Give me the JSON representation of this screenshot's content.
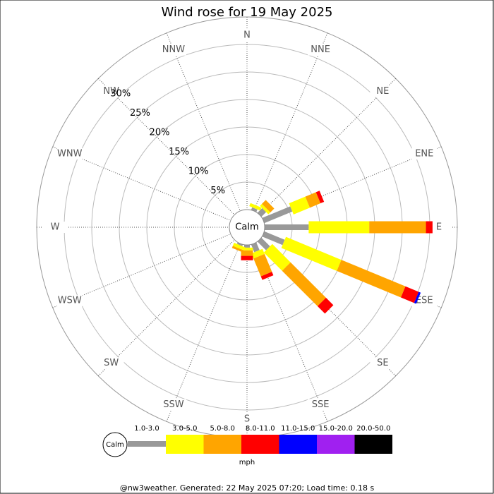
{
  "chart_data": {
    "type": "windrose",
    "title": "Wind rose for 19 May 2025",
    "directions": [
      "N",
      "NNE",
      "NE",
      "ENE",
      "E",
      "ESE",
      "SE",
      "SSE",
      "S",
      "SSW",
      "SW",
      "WSW",
      "W",
      "WNW",
      "NW",
      "NNW"
    ],
    "calm_label": "Calm",
    "rlim": [
      0,
      35
    ],
    "rticks": [
      {
        "value": 5,
        "label": "5%"
      },
      {
        "value": 10,
        "label": "10%"
      },
      {
        "value": 15,
        "label": "15%"
      },
      {
        "value": 20,
        "label": "20%"
      },
      {
        "value": 25,
        "label": "25%"
      },
      {
        "value": 30,
        "label": "30%"
      }
    ],
    "series": [
      {
        "name": "1.0-3.0",
        "color": "#999999",
        "values": [
          0,
          0.5,
          1.2,
          5.5,
          8.0,
          4.0,
          2.2,
          1.5,
          0.5,
          0.3,
          0,
          0,
          0,
          0,
          0,
          0
        ]
      },
      {
        "name": "3.0-5.0",
        "color": "#ffff00",
        "values": [
          0,
          0.6,
          0.5,
          3.2,
          11.0,
          10.9,
          4.7,
          1.0,
          0.5,
          0.6,
          0,
          0,
          0,
          0,
          0,
          0
        ]
      },
      {
        "name": "5.0-8.0",
        "color": "#ffa500",
        "values": [
          0,
          0,
          1.0,
          2.1,
          10.3,
          12.6,
          9.1,
          3.5,
          1.0,
          0.4,
          0,
          0,
          0,
          0,
          0,
          0
        ]
      },
      {
        "name": "8.0-11.0",
        "color": "#ff0000",
        "values": [
          0,
          0,
          0,
          0.7,
          1.2,
          2.6,
          1.9,
          0.7,
          0.8,
          0,
          0,
          0,
          0,
          0,
          0,
          0
        ]
      },
      {
        "name": "11.0-15.0",
        "color": "#0000ff",
        "values": [
          0,
          0,
          0,
          0,
          0,
          0.4,
          0,
          0,
          0,
          0,
          0,
          0,
          0,
          0,
          0,
          0
        ]
      },
      {
        "name": "15.0-20.0",
        "color": "#a020f0",
        "values": [
          0,
          0,
          0,
          0,
          0,
          0,
          0,
          0,
          0,
          0,
          0,
          0,
          0,
          0,
          0,
          0
        ]
      },
      {
        "name": "20.0-50.0",
        "color": "#000000",
        "values": [
          0,
          0,
          0,
          0,
          0,
          0,
          0,
          0,
          0,
          0,
          0,
          0,
          0,
          0,
          0,
          0
        ]
      }
    ],
    "units": "mph",
    "footer": "@nw3weather. Generated: 22 May 2025 07:20; Load time: 0.18 s"
  }
}
